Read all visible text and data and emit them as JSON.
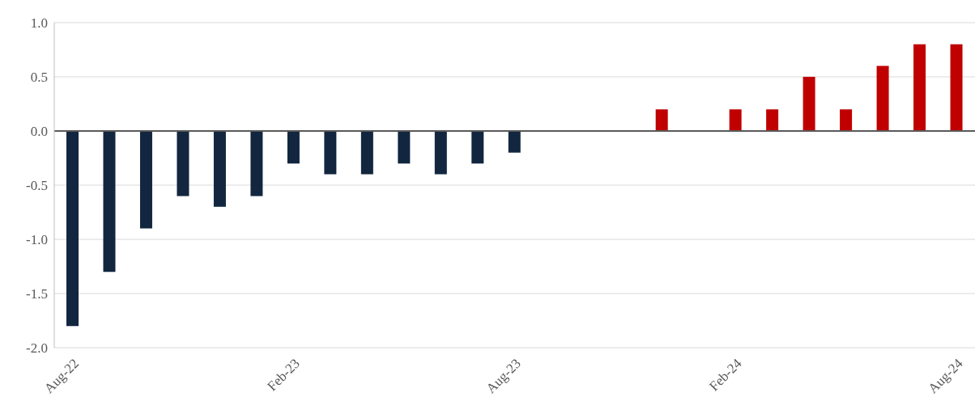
{
  "chart_data": {
    "type": "bar",
    "categories": [
      "Aug-22",
      null,
      null,
      null,
      null,
      null,
      "Feb-23",
      null,
      null,
      null,
      null,
      null,
      "Aug-23",
      null,
      null,
      null,
      null,
      null,
      "Feb-24",
      null,
      null,
      null,
      null,
      null,
      "Aug-24"
    ],
    "values": [
      -1.8,
      -1.3,
      -0.9,
      -0.6,
      -0.7,
      -0.6,
      -0.3,
      -0.4,
      -0.4,
      -0.3,
      -0.4,
      -0.3,
      -0.2,
      0,
      0,
      0,
      0.2,
      0,
      0.2,
      0.2,
      0.5,
      0.2,
      0.6,
      0.8,
      0.8
    ],
    "colors": [
      "#12263f",
      "#12263f",
      "#12263f",
      "#12263f",
      "#12263f",
      "#12263f",
      "#12263f",
      "#12263f",
      "#12263f",
      "#12263f",
      "#12263f",
      "#12263f",
      "#12263f",
      "#c00000",
      "#c00000",
      "#c00000",
      "#c00000",
      "#c00000",
      "#c00000",
      "#c00000",
      "#c00000",
      "#c00000",
      "#c00000",
      "#c00000",
      "#c00000"
    ],
    "ylim": [
      -2,
      1
    ],
    "yticks": [
      {
        "value": -2,
        "label": "-2.0"
      },
      {
        "value": -1.5,
        "label": "-1.5"
      },
      {
        "value": -1,
        "label": "-1.0"
      },
      {
        "value": -0.5,
        "label": "-0.5"
      },
      {
        "value": 0,
        "label": "0.0"
      },
      {
        "value": 0.5,
        "label": "0.5"
      },
      {
        "value": 1,
        "label": "1.0"
      }
    ],
    "ref_lines": [
      {
        "axis": "y",
        "value": 0,
        "color": "#595959"
      }
    ],
    "grid": "y"
  }
}
